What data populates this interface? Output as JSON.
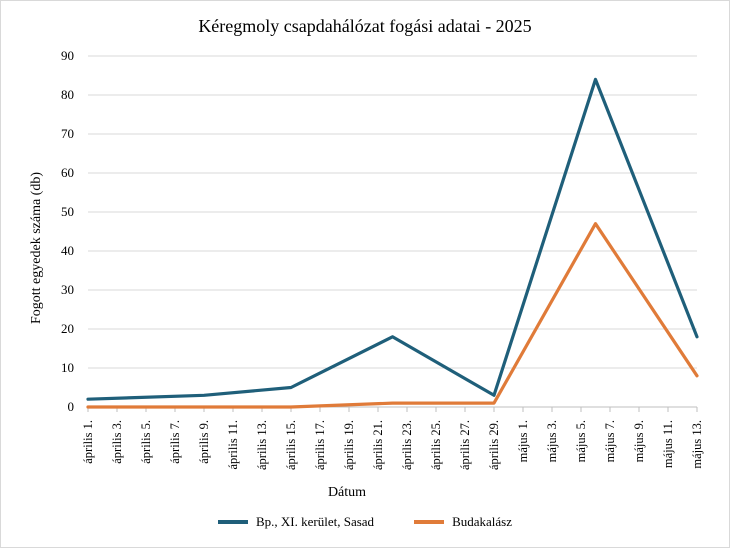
{
  "chart_data": {
    "type": "line",
    "title": "Kéregmoly csapdahálózat fogási adatai - 2025",
    "xlabel": "Dátum",
    "ylabel": "Fogott egyedek száma (db)",
    "ylim": [
      0,
      90
    ],
    "yticks": [
      0,
      10,
      20,
      30,
      40,
      50,
      60,
      70,
      80,
      90
    ],
    "grid": true,
    "legend": "bottom",
    "categories": [
      "április 1.",
      "április 3.",
      "április 5.",
      "április 7.",
      "április 9.",
      "április 11.",
      "április 13.",
      "április 15.",
      "április 17.",
      "április 19.",
      "április 21.",
      "április 23.",
      "április 25.",
      "április 27.",
      "április 29.",
      "május 1.",
      "május 3.",
      "május 5.",
      "május 7.",
      "május 9.",
      "május 11.",
      "május 13."
    ],
    "series": [
      {
        "name": "Bp., XI. kerület, Sasad",
        "color": "#1f5f7a",
        "points": [
          {
            "x": "április 1.",
            "y": 2
          },
          {
            "x": "április 9.",
            "y": 3
          },
          {
            "x": "április 15.",
            "y": 5
          },
          {
            "x": "április 22.",
            "y": 18
          },
          {
            "x": "április 29.",
            "y": 3
          },
          {
            "x": "május 6.",
            "y": 84
          },
          {
            "x": "május 13.",
            "y": 18
          }
        ]
      },
      {
        "name": "Budakalász",
        "color": "#e07b39",
        "points": [
          {
            "x": "április 1.",
            "y": 0
          },
          {
            "x": "április 9.",
            "y": 0
          },
          {
            "x": "április 15.",
            "y": 0
          },
          {
            "x": "április 22.",
            "y": 1
          },
          {
            "x": "április 29.",
            "y": 1
          },
          {
            "x": "május 6.",
            "y": 47
          },
          {
            "x": "május 13.",
            "y": 8
          }
        ]
      }
    ]
  }
}
